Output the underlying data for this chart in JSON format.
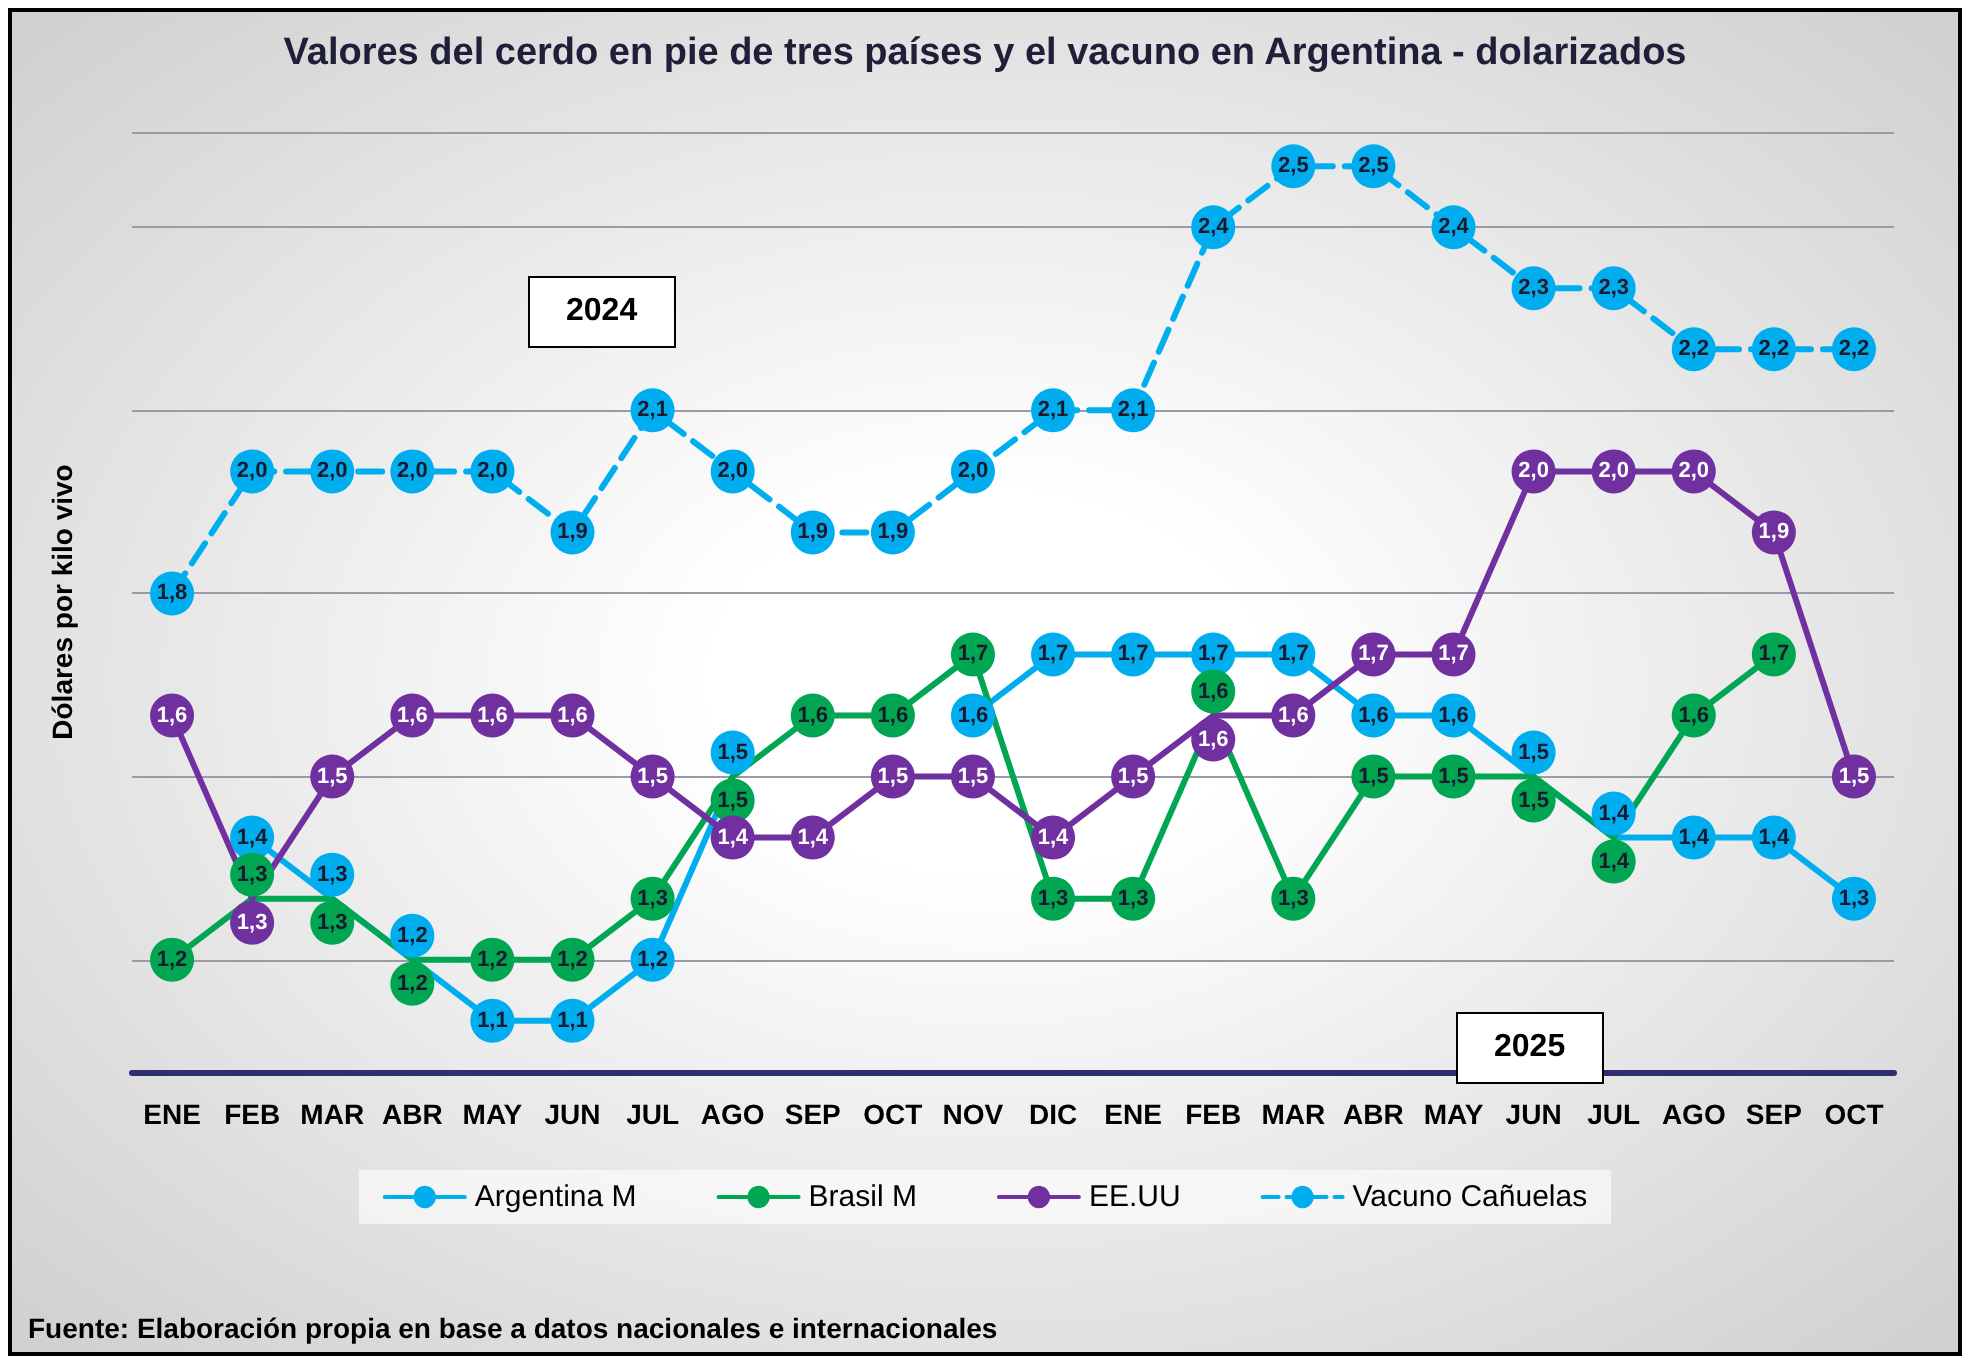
{
  "chart_data": {
    "type": "line",
    "title": "Valores del cerdo en pie de tres países y el vacuno en Argentina - dolarizados",
    "ylabel": "Dólares por kilo vivo",
    "categories": [
      "ENE",
      "FEB",
      "MAR",
      "ABR",
      "MAY",
      "JUN",
      "JUL",
      "AGO",
      "SEP",
      "OCT",
      "NOV",
      "DIC",
      "ENE",
      "FEB",
      "MAR",
      "ABR",
      "MAY",
      "JUN",
      "JUL",
      "AGO",
      "SEP",
      "OCT"
    ],
    "series": [
      {
        "name": "Argentina M",
        "color": "#00aeef",
        "values": [
          null,
          1.4,
          1.3,
          1.2,
          1.1,
          1.1,
          1.2,
          1.5,
          null,
          null,
          1.6,
          1.7,
          1.7,
          1.7,
          1.7,
          1.6,
          1.6,
          1.5,
          1.4,
          1.4,
          1.4,
          1.3
        ],
        "value_labels": [
          null,
          "1,4",
          "1,3",
          "1,2",
          "1,1",
          "1,1",
          "1,2",
          "1,5",
          null,
          null,
          "1,6",
          "1,7",
          "1,7",
          "1,7",
          "1,7",
          "1,6",
          "1,6",
          "1,5",
          "1,4",
          "1,4",
          "1,4",
          "1,3"
        ]
      },
      {
        "name": "Brasil M",
        "color": "#00a651",
        "values": [
          1.2,
          1.3,
          1.3,
          1.2,
          1.2,
          1.2,
          1.3,
          1.5,
          1.6,
          1.6,
          1.7,
          1.3,
          1.3,
          1.6,
          1.3,
          1.5,
          1.5,
          1.5,
          1.4,
          1.6,
          1.7,
          null
        ],
        "value_labels": [
          "1,2",
          "1,3",
          "1,3",
          "1,2",
          "1,2",
          "1,2",
          "1,3",
          "1,5",
          "1,6",
          "1,6",
          "1,7",
          "1,3",
          "1,3",
          "1,6",
          "1,3",
          "1,5",
          "1,5",
          "1,5",
          "1,4",
          "1,6",
          "1,7",
          null
        ]
      },
      {
        "name": "EE.UU",
        "color": "#7030a0",
        "values": [
          1.6,
          1.3,
          1.5,
          1.6,
          1.6,
          1.6,
          1.5,
          1.4,
          1.4,
          1.5,
          1.5,
          1.4,
          1.5,
          1.6,
          1.6,
          1.7,
          1.7,
          2.0,
          2.0,
          2.0,
          1.9,
          1.5
        ],
        "value_labels": [
          "1,6",
          "1,3",
          "1,5",
          "1,6",
          "1,6",
          "1,6",
          "1,5",
          "1,4",
          "1,4",
          "1,5",
          "1,5",
          "1,4",
          "1,5",
          "1,6",
          "1,6",
          "1,7",
          "1,7",
          "2,0",
          "2,0",
          "2,0",
          "1,9",
          "1,5"
        ]
      },
      {
        "name": "Vacuno Cañuelas",
        "color": "#00aeef",
        "line_style": "dashed",
        "values": [
          1.8,
          2.0,
          2.0,
          2.0,
          2.0,
          1.9,
          2.1,
          2.0,
          1.9,
          1.9,
          2.0,
          2.1,
          2.1,
          2.4,
          2.5,
          2.5,
          2.4,
          2.3,
          2.3,
          2.2,
          2.2,
          2.2
        ],
        "value_labels": [
          "1,8",
          "2,0",
          "2,0",
          "2,0",
          "2,0",
          "1,9",
          "2,1",
          "2,0",
          "1,9",
          "1,9",
          "2,0",
          "2,1",
          "2,1",
          "2,4",
          "2,5",
          "2,5",
          "2,4",
          "2,3",
          "2,3",
          "2,2",
          "2,2",
          "2,2"
        ]
      }
    ],
    "marker": "circle",
    "line_style": "solid",
    "grid": "y",
    "legend": "bottom",
    "tick_labels": "x",
    "annotations": [
      "2024",
      "2025",
      "Fuente: Elaboración propia en base a datos nacionales e internacionales"
    ]
  }
}
